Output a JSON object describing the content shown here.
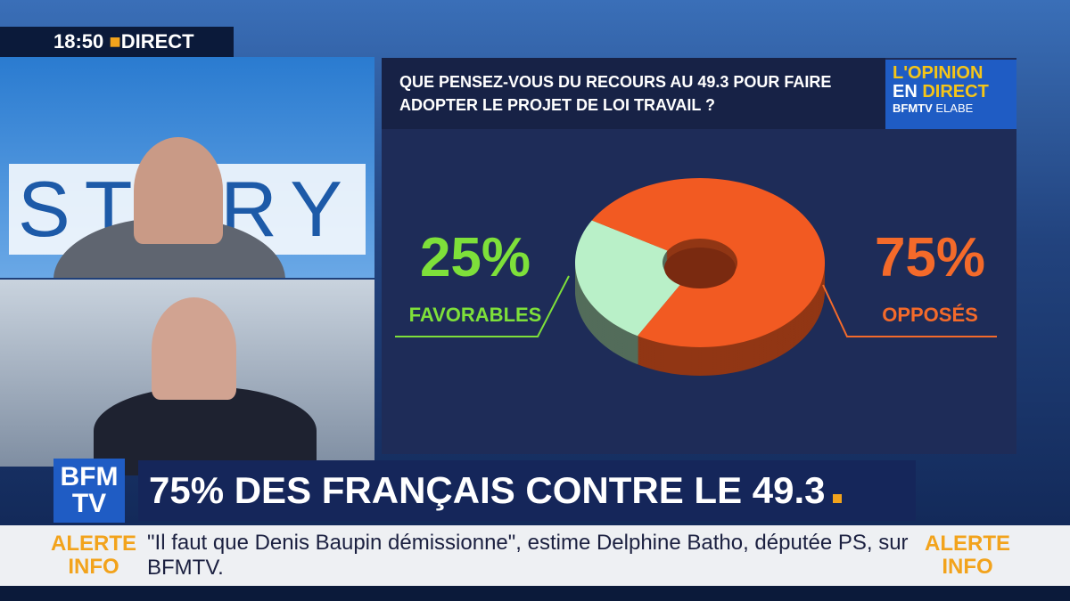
{
  "clock": {
    "time": "18:50",
    "label": "DIRECT"
  },
  "background_text": "STORY",
  "badge": {
    "line1": "L'OPINION",
    "line2a": "EN",
    "line2b": "DIRECT",
    "brand": "BFMTV",
    "partner": "ELABE"
  },
  "chart_data": {
    "type": "pie",
    "title": "QUE PENSEZ-VOUS DU RECOURS AU 49.3 POUR FAIRE ADOPTER LE PROJET DE LOI TRAVAIL ?",
    "categories": [
      "FAVORABLES",
      "OPPOSÉS"
    ],
    "values": [
      25,
      75
    ],
    "value_labels": [
      "25%",
      "75%"
    ],
    "colors": [
      "#b9f0c8",
      "#f25a22"
    ],
    "label_colors": [
      "#7ee03a",
      "#f46a2a"
    ],
    "donut": true
  },
  "logo": {
    "line1": "BFM",
    "line2": "TV"
  },
  "headline": "75% DES FRANÇAIS CONTRE LE 49.3",
  "ticker": {
    "badge_line1": "ALERTE",
    "badge_line2": "INFO",
    "message": "\"Il faut que Denis Baupin démissionne\", estime Delphine Batho, députée PS, sur BFMTV."
  }
}
